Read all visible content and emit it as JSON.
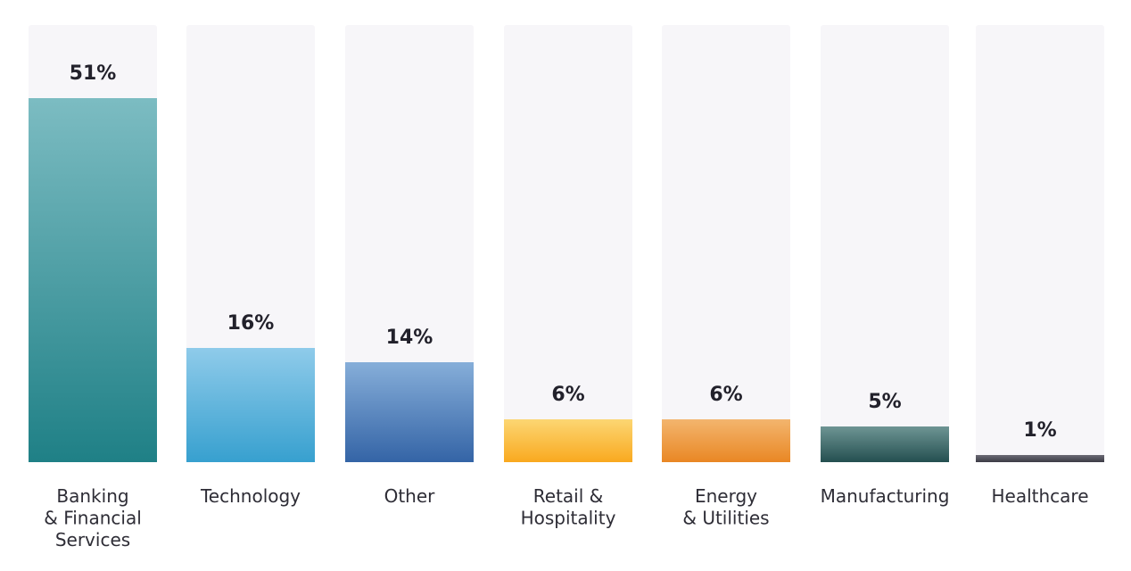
{
  "chart_data": {
    "type": "bar",
    "title": "",
    "xlabel": "",
    "ylabel": "",
    "ylim": [
      0,
      60
    ],
    "grid": false,
    "legend": "none",
    "categories": [
      "Banking & Financial Services",
      "Technology",
      "Other",
      "Retail & Hospitality",
      "Energy & Utilities",
      "Manufacturing",
      "Healthcare"
    ],
    "category_label_lines": [
      [
        "Banking",
        "& Financial",
        "Services"
      ],
      [
        "Technology"
      ],
      [
        "Other"
      ],
      [
        "Retail &",
        "Hospitality"
      ],
      [
        "Energy",
        "& Utilities"
      ],
      [
        "Manufacturing"
      ],
      [
        "Healthcare"
      ]
    ],
    "values": [
      51,
      16,
      14,
      6,
      6,
      5,
      1
    ],
    "value_labels": [
      "51%",
      "16%",
      "14%",
      "6%",
      "6%",
      "5%",
      "1%"
    ],
    "track_color": "#f7f6f9",
    "bar_gradients": [
      [
        "#7cbcc2",
        "#1f8086"
      ],
      [
        "#8fcbea",
        "#37a0cf"
      ],
      [
        "#86aed9",
        "#3464a6"
      ],
      [
        "#fcd673",
        "#f9a91f"
      ],
      [
        "#f3b56e",
        "#e98724"
      ],
      [
        "#6e9594",
        "#244f50"
      ],
      [
        "#6b6a75",
        "#3c3b45"
      ]
    ]
  }
}
